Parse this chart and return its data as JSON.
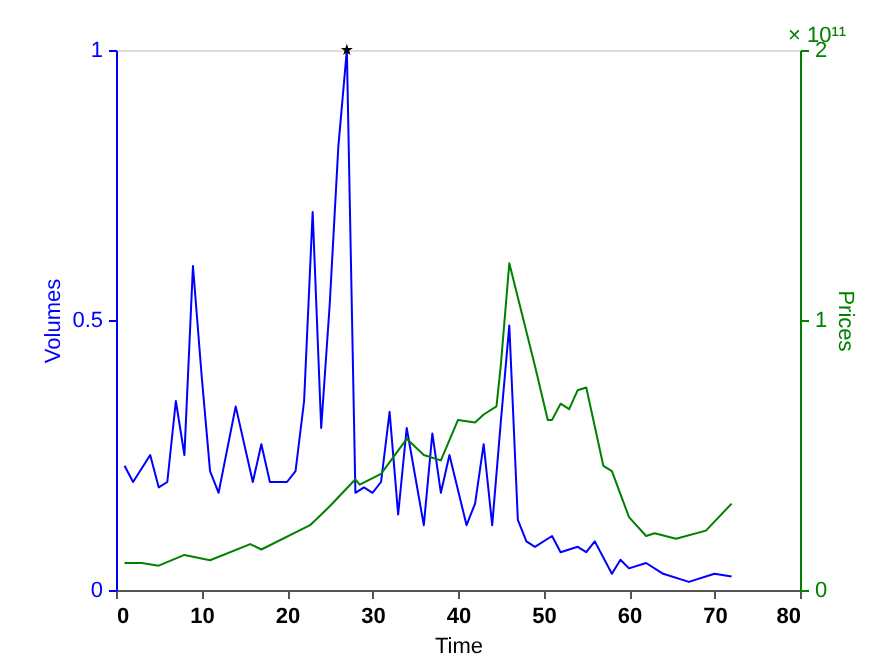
{
  "chart_data": {
    "type": "line",
    "xlabel": "Time",
    "ylabel": "Volumes",
    "y2label": "Prices",
    "annotations": [
      "× 10¹¹"
    ],
    "xlim": [
      0,
      80
    ],
    "xticks": [
      0,
      10,
      20,
      30,
      40,
      50,
      60,
      70,
      80
    ],
    "ylim": [
      0,
      1
    ],
    "yticks": [
      0,
      0.5,
      1
    ],
    "y2lim": [
      0,
      2
    ],
    "y2ticks": [
      0,
      1,
      2
    ],
    "grid": false,
    "line_style": "solid",
    "series": [
      {
        "color": "#0000ff",
        "marker": "none",
        "x": [
          1,
          2,
          4,
          5,
          6,
          7,
          8,
          9,
          10,
          11,
          12,
          14,
          16,
          17,
          18,
          20,
          21,
          22,
          23,
          24,
          25,
          26,
          27,
          28,
          29,
          30,
          31,
          32,
          33,
          34,
          36,
          37,
          38,
          39,
          41,
          42,
          43,
          44,
          45,
          46,
          47,
          48,
          49,
          51,
          52,
          54,
          55,
          56,
          58,
          59,
          60,
          62,
          64,
          67,
          70,
          72
        ],
        "values": [
          0.23,
          0.2,
          0.25,
          0.19,
          0.2,
          0.35,
          0.25,
          0.6,
          0.4,
          0.22,
          0.18,
          0.34,
          0.2,
          0.27,
          0.2,
          0.2,
          0.22,
          0.35,
          0.7,
          0.3,
          0.53,
          0.82,
          1.0,
          0.18,
          0.19,
          0.18,
          0.2,
          0.33,
          0.14,
          0.3,
          0.12,
          0.29,
          0.18,
          0.25,
          0.12,
          0.16,
          0.27,
          0.12,
          0.31,
          0.49,
          0.13,
          0.09,
          0.08,
          0.1,
          0.07,
          0.08,
          0.07,
          0.09,
          0.03,
          0.056,
          0.04,
          0.05,
          0.03,
          0.015,
          0.03,
          0.025
        ]
      },
      {
        "color": "#008000",
        "axis": "y2",
        "marker": "none",
        "x": [
          1,
          3,
          5,
          8,
          11,
          15.7,
          17,
          22.7,
          25,
          28,
          28.5,
          31,
          34,
          36,
          38,
          40,
          42,
          43,
          44.5,
          45,
          46,
          47.5,
          49,
          50.5,
          51,
          52,
          53,
          54,
          55,
          57,
          58,
          60,
          62,
          63,
          65.5,
          69,
          72
        ],
        "values": [
          0.1,
          0.1,
          0.09,
          0.13,
          0.11,
          0.17,
          0.15,
          0.24,
          0.31,
          0.41,
          0.39,
          0.43,
          0.56,
          0.5,
          0.48,
          0.63,
          0.62,
          0.65,
          0.68,
          0.83,
          1.21,
          1.02,
          0.83,
          0.63,
          0.63,
          0.69,
          0.67,
          0.74,
          0.75,
          0.46,
          0.44,
          0.27,
          0.2,
          0.21,
          0.19,
          0.22,
          0.32
        ]
      },
      {
        "type": "scatter",
        "color": "#000000",
        "marker": "star",
        "x": [
          27
        ],
        "values": [
          1.0
        ]
      }
    ]
  }
}
